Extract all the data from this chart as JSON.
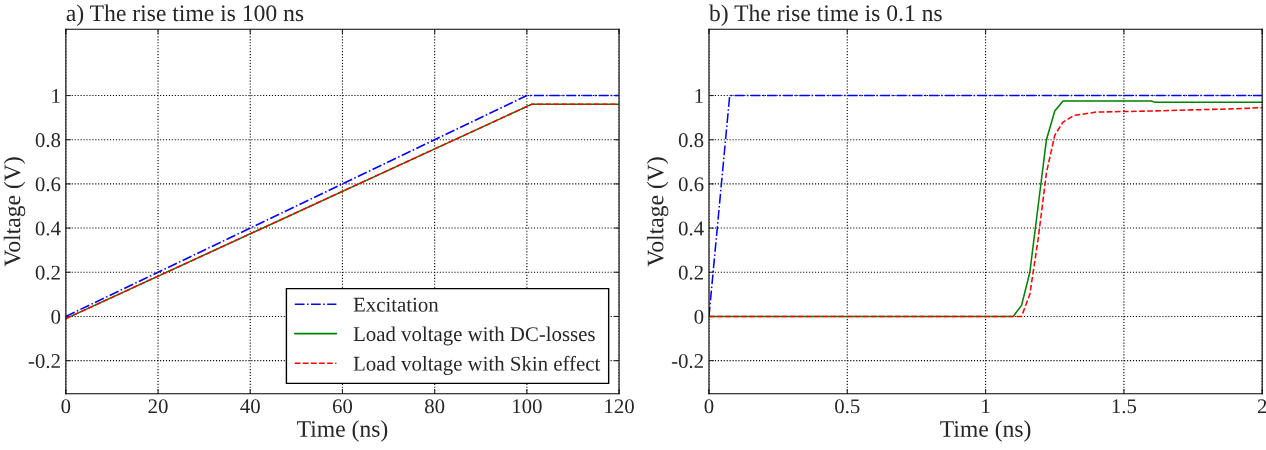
{
  "chart_data": [
    {
      "type": "line",
      "title": "a) The rise time is 100 ns",
      "xlabel": "Time (ns)",
      "ylabel": "Voltage (V)",
      "xlim": [
        0,
        120
      ],
      "xticks": [
        0,
        20,
        40,
        60,
        80,
        100,
        120
      ],
      "ylim": [
        -0.35,
        1.3
      ],
      "yticks": [
        -0.2,
        0,
        0.2,
        0.4,
        0.6,
        0.8,
        1
      ],
      "grid": true,
      "legend": "bottom right",
      "series": [
        {
          "name": "Excitation",
          "color": "#0000ff",
          "line_style": "dashdot",
          "x": [
            0,
            100,
            120
          ],
          "values": [
            0,
            1,
            1
          ]
        },
        {
          "name": "Load voltage with DC-losses",
          "color": "#008000",
          "line_style": "solid",
          "x": [
            0,
            101,
            120
          ],
          "values": [
            -0.01,
            0.96,
            0.96
          ]
        },
        {
          "name": "Load voltage with Skin effect",
          "color": "#ff0000",
          "line_style": "dashed",
          "x": [
            0,
            101,
            120
          ],
          "values": [
            -0.01,
            0.96,
            0.96
          ]
        }
      ]
    },
    {
      "type": "line",
      "title": "b) The rise time is 0.1 ns",
      "xlabel": "Time (ns)",
      "ylabel": "Voltage (V)",
      "xlim": [
        0,
        2
      ],
      "xticks": [
        0,
        0.5,
        1,
        1.5,
        2
      ],
      "ylim": [
        -0.35,
        1.3
      ],
      "yticks": [
        -0.2,
        0,
        0.2,
        0.4,
        0.6,
        0.8,
        1
      ],
      "grid": true,
      "series": [
        {
          "color": "#0000ff",
          "line_style": "dashdot",
          "x": [
            0,
            0.075,
            2
          ],
          "values": [
            0,
            1,
            1
          ]
        },
        {
          "color": "#008000",
          "line_style": "solid",
          "x": [
            0,
            1.1,
            1.13,
            1.16,
            1.19,
            1.22,
            1.25,
            1.28,
            1.6,
            1.61,
            2
          ],
          "values": [
            0,
            0,
            0.05,
            0.2,
            0.5,
            0.8,
            0.93,
            0.975,
            0.975,
            0.97,
            0.97
          ]
        },
        {
          "color": "#ff0000",
          "line_style": "dashed",
          "x": [
            0,
            1.13,
            1.16,
            1.19,
            1.22,
            1.25,
            1.28,
            1.32,
            1.4,
            1.6,
            1.9,
            2
          ],
          "values": [
            0,
            0,
            0.1,
            0.35,
            0.65,
            0.82,
            0.88,
            0.91,
            0.925,
            0.93,
            0.94,
            0.945
          ]
        }
      ]
    }
  ]
}
